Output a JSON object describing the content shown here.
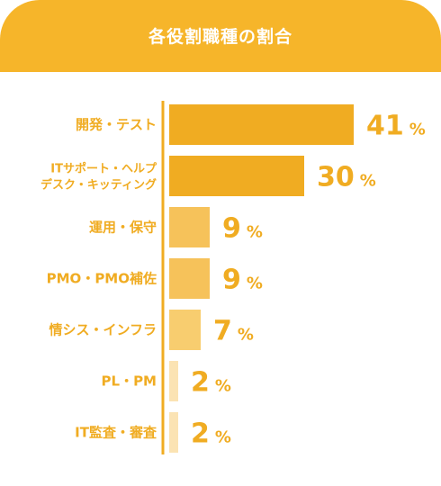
{
  "colors": {
    "header": "#f6b52a",
    "header_text": "#ffffff",
    "accent": "#f0ac22"
  },
  "chart_data": {
    "type": "bar",
    "orientation": "horizontal",
    "title": "各役割職種の割合",
    "unit": "%",
    "categories": [
      [
        "開発・テスト"
      ],
      [
        "ITサポート・ヘルプ",
        "デスク・キッティング"
      ],
      [
        "運用・保守"
      ],
      [
        "PMO・PMO補佐"
      ],
      [
        "情シス・インフラ"
      ],
      [
        "PL・PM"
      ],
      [
        "IT監査・審査"
      ]
    ],
    "values": [
      41,
      30,
      9,
      9,
      7,
      2,
      2
    ],
    "bar_colors": [
      "#f0ac22",
      "#f0ac22",
      "#f6c25a",
      "#f6c25a",
      "#f8cd6f",
      "#fbe3b3",
      "#fbe3b3"
    ],
    "xlim": [
      0,
      50
    ]
  }
}
